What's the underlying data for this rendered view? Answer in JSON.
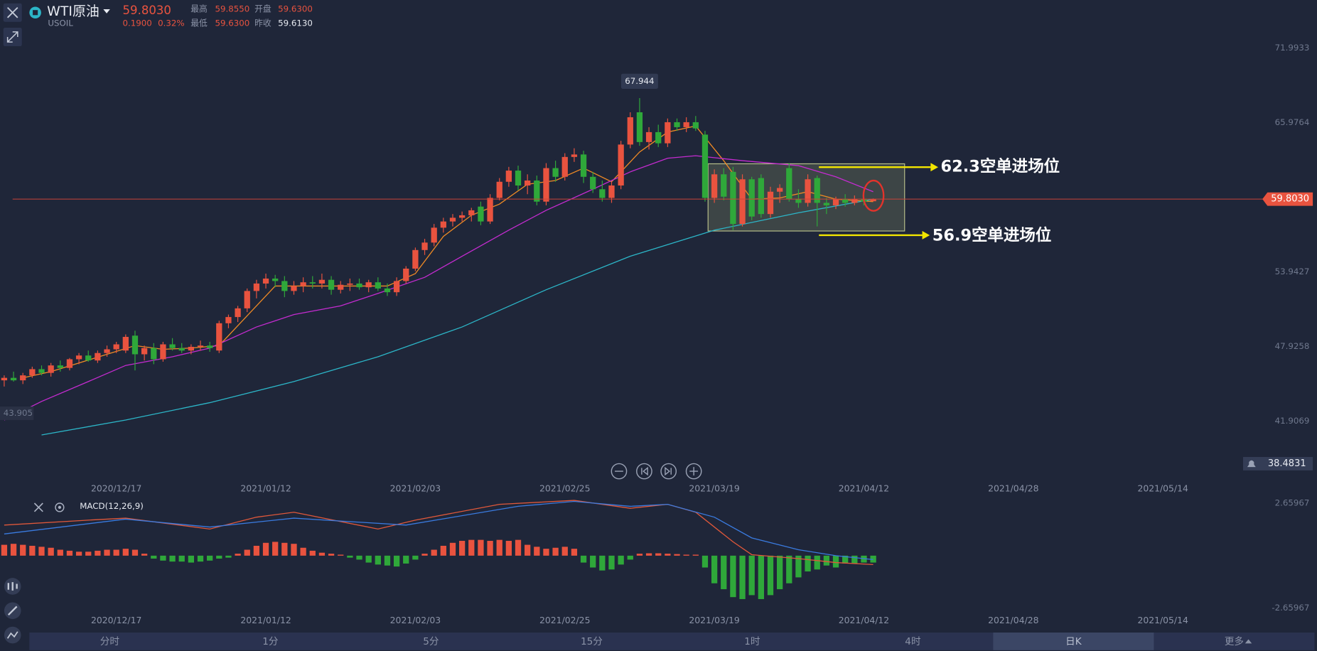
{
  "header": {
    "symbol": "WTI原油",
    "price": "59.8030",
    "code": "USOIL",
    "change": "0.1900",
    "change_pct": "0.32%",
    "stats": [
      {
        "label": "最高",
        "value": "59.8550"
      },
      {
        "label": "开盘",
        "value": "59.6300"
      },
      {
        "label": "最低",
        "value": "59.6300"
      },
      {
        "label": "昨收",
        "value": "59.6130"
      }
    ]
  },
  "annotations": [
    "62.3空单进场位",
    "56.9空单进场位"
  ],
  "toolbar": {
    "tabs": [
      "分时",
      "1分",
      "5分",
      "15分",
      "1时",
      "4时",
      "日K",
      "更多"
    ],
    "active": "日K"
  },
  "chart_data": [
    {
      "type": "candlestick",
      "up_color": "#e9533f",
      "down_color": "#2fa83a",
      "xlim": [
        -0.45,
        134.38
      ],
      "ylim": [
        38.4831,
        73.14
      ],
      "xticks": [
        {
          "value": 12,
          "label": "2020/12/17"
        },
        {
          "value": 28,
          "label": "2021/01/12"
        },
        {
          "value": 44,
          "label": "2021/02/03"
        },
        {
          "value": 60,
          "label": "2021/02/25"
        },
        {
          "value": 76,
          "label": "2021/03/19"
        },
        {
          "value": 92,
          "label": "2021/04/12"
        },
        {
          "value": 108,
          "label": "2021/04/28"
        },
        {
          "value": 124,
          "label": "2021/05/14"
        }
      ],
      "yticks": [
        71.9933,
        65.9764,
        53.9427,
        47.9258,
        41.9069
      ],
      "last_price": {
        "value": 59.803,
        "label": "59.8030"
      },
      "alert_price": 38.4831,
      "high_label": 67.944,
      "left_label": 43.905,
      "x": [
        0,
        1,
        2,
        3,
        4,
        5,
        6,
        7,
        8,
        9,
        10,
        11,
        12,
        13,
        14,
        15,
        16,
        17,
        18,
        19,
        20,
        21,
        22,
        23,
        24,
        25,
        26,
        27,
        28,
        29,
        30,
        31,
        32,
        33,
        34,
        35,
        36,
        37,
        38,
        39,
        40,
        41,
        42,
        43,
        44,
        45,
        46,
        47,
        48,
        49,
        50,
        51,
        52,
        53,
        54,
        55,
        56,
        57,
        58,
        59,
        60,
        61,
        62,
        63,
        64,
        65,
        66,
        67,
        68,
        69,
        70,
        71,
        72,
        73,
        74,
        75,
        76,
        77,
        78,
        79,
        80,
        81,
        82,
        83,
        84,
        85,
        86,
        87,
        88,
        89,
        90,
        91,
        92,
        93
      ],
      "open": [
        45.2,
        45.4,
        45.2,
        45.6,
        46.1,
        45.8,
        46.4,
        46.2,
        46.9,
        47.2,
        46.8,
        47.4,
        47.7,
        47.6,
        48.8,
        47.3,
        47.8,
        46.9,
        48.1,
        47.8,
        47.6,
        47.9,
        48.0,
        47.6,
        49.8,
        50.3,
        51.0,
        52.4,
        53.0,
        53.4,
        53.2,
        52.4,
        52.8,
        53.1,
        53.0,
        53.3,
        52.5,
        52.9,
        53.0,
        52.7,
        53.1,
        52.6,
        52.3,
        53.2,
        54.2,
        55.7,
        56.3,
        57.5,
        58.0,
        58.3,
        58.5,
        59.2,
        58.0,
        59.9,
        61.2,
        62.1,
        60.9,
        61.3,
        59.6,
        62.3,
        61.6,
        63.2,
        63.4,
        61.6,
        60.6,
        59.9,
        60.9,
        64.2,
        66.8,
        64.4,
        65.2,
        64.3,
        66.0,
        65.6,
        66.0,
        65.0,
        59.9,
        61.8,
        62.0,
        57.8,
        61.4,
        61.5,
        58.6,
        60.4,
        62.3,
        59.8,
        59.5,
        61.5,
        59.5,
        59.3,
        59.8,
        59.5,
        59.8,
        59.63
      ],
      "high": [
        45.6,
        45.9,
        45.8,
        46.3,
        46.4,
        46.6,
        46.8,
        47.0,
        47.4,
        47.6,
        47.6,
        48.0,
        48.3,
        48.9,
        49.2,
        48.0,
        48.2,
        48.3,
        48.6,
        48.2,
        48.1,
        48.4,
        48.3,
        50.0,
        50.5,
        51.2,
        52.6,
        53.3,
        53.8,
        53.7,
        53.6,
        53.2,
        53.5,
        53.6,
        53.8,
        53.6,
        53.2,
        53.4,
        53.4,
        53.3,
        53.5,
        53.0,
        53.5,
        54.4,
        55.9,
        56.6,
        57.8,
        58.3,
        58.6,
        58.8,
        59.1,
        59.6,
        60.2,
        61.5,
        62.4,
        62.5,
        61.8,
        61.7,
        62.7,
        62.9,
        63.5,
        63.9,
        63.7,
        62.0,
        61.3,
        61.2,
        64.5,
        66.8,
        67.944,
        65.6,
        65.8,
        66.3,
        66.3,
        66.4,
        66.5,
        65.3,
        62.2,
        62.3,
        62.4,
        61.8,
        61.6,
        61.8,
        60.8,
        61.0,
        62.7,
        60.6,
        61.8,
        61.7,
        59.9,
        60.0,
        60.2,
        60.1,
        60.0,
        59.855
      ],
      "low": [
        44.7,
        45.1,
        44.9,
        45.4,
        45.6,
        45.5,
        45.9,
        46.0,
        46.5,
        46.7,
        46.6,
        47.1,
        47.4,
        47.4,
        46.0,
        46.8,
        46.5,
        46.7,
        47.6,
        47.4,
        47.3,
        47.6,
        47.5,
        47.4,
        49.4,
        49.9,
        50.7,
        51.8,
        52.6,
        52.7,
        51.9,
        52.1,
        52.3,
        52.6,
        52.6,
        52.1,
        52.2,
        52.4,
        52.5,
        52.3,
        52.4,
        52.0,
        52.0,
        53.0,
        54.0,
        55.3,
        56.0,
        57.1,
        57.6,
        58.0,
        58.0,
        57.7,
        57.8,
        59.7,
        60.8,
        60.5,
        60.2,
        59.3,
        59.3,
        61.2,
        61.3,
        62.8,
        61.1,
        60.3,
        59.6,
        59.5,
        60.6,
        63.9,
        64.1,
        63.8,
        64.0,
        64.0,
        65.3,
        65.2,
        65.3,
        59.6,
        59.5,
        59.7,
        57.3,
        57.6,
        58.1,
        58.3,
        58.3,
        59.5,
        59.6,
        59.1,
        59.2,
        57.6,
        58.6,
        59.0,
        59.2,
        59.3,
        59.3,
        59.63
      ],
      "close": [
        45.4,
        45.2,
        45.6,
        46.1,
        45.8,
        46.4,
        46.2,
        46.9,
        47.2,
        46.8,
        47.4,
        47.7,
        48.1,
        48.7,
        47.3,
        47.8,
        46.9,
        48.1,
        47.8,
        47.6,
        47.9,
        48.0,
        47.8,
        49.8,
        50.3,
        51.0,
        52.4,
        53.0,
        53.4,
        53.2,
        52.4,
        52.8,
        53.1,
        53.0,
        53.3,
        52.5,
        52.9,
        53.0,
        52.7,
        53.1,
        52.6,
        52.3,
        53.2,
        54.2,
        55.7,
        56.3,
        57.5,
        58.0,
        58.3,
        58.5,
        58.9,
        58.0,
        59.9,
        61.2,
        62.1,
        60.9,
        61.3,
        59.6,
        62.3,
        61.6,
        63.2,
        63.4,
        61.6,
        60.6,
        59.9,
        60.9,
        64.2,
        66.4,
        64.4,
        65.2,
        64.3,
        66.0,
        65.6,
        66.0,
        65.5,
        59.9,
        61.8,
        60.0,
        57.8,
        61.4,
        58.4,
        58.6,
        60.4,
        60.7,
        59.8,
        59.5,
        61.4,
        59.5,
        59.3,
        59.8,
        59.5,
        59.8,
        59.6,
        59.803
      ],
      "lines": [
        {
          "color": "#f08a24",
          "x": [
            2,
            5,
            8,
            11,
            14,
            17,
            20,
            23,
            26,
            29,
            32,
            35,
            38,
            41,
            44,
            47,
            50,
            53,
            56,
            59,
            62,
            65,
            68,
            71,
            74,
            77,
            80,
            83,
            86,
            89,
            93
          ],
          "values": [
            45.4,
            45.9,
            46.6,
            47.3,
            48.0,
            47.7,
            47.8,
            48.0,
            50.4,
            52.8,
            52.8,
            52.8,
            52.8,
            52.8,
            53.8,
            56.8,
            58.5,
            59.4,
            61.0,
            61.3,
            62.3,
            61.2,
            63.6,
            65.2,
            65.7,
            62.9,
            59.8,
            59.9,
            60.4,
            59.8,
            59.6
          ]
        },
        {
          "color": "#c42bd0",
          "x": [
            0,
            4,
            9,
            13,
            18,
            22,
            27,
            31,
            36,
            40,
            45,
            49,
            54,
            58,
            63,
            67,
            71,
            74,
            79,
            85,
            89,
            93
          ],
          "values": [
            42.0,
            43.5,
            45.1,
            46.4,
            47.1,
            47.8,
            49.5,
            50.5,
            51.2,
            52.2,
            53.5,
            55.2,
            57.3,
            58.9,
            60.6,
            62.0,
            63.1,
            63.3,
            62.9,
            62.5,
            61.6,
            60.4
          ]
        },
        {
          "color": "#2cb6c8",
          "x": [
            4,
            13,
            22,
            31,
            40,
            49,
            58,
            67,
            76,
            85,
            93
          ],
          "values": [
            40.8,
            42.0,
            43.4,
            45.1,
            47.1,
            49.5,
            52.5,
            55.2,
            57.3,
            58.7,
            59.8
          ]
        }
      ]
    },
    {
      "type": "macd",
      "title": "MACD(12,26,9)",
      "up_color": "#e9533f",
      "down_color": "#2fa83a",
      "xlim": [
        -0.45,
        134.38
      ],
      "ylim": [
        -3,
        3
      ],
      "xticks": [
        {
          "value": 12,
          "label": "2020/12/17"
        },
        {
          "value": 28,
          "label": "2021/01/12"
        },
        {
          "value": 44,
          "label": "2021/02/03"
        },
        {
          "value": 60,
          "label": "2021/02/25"
        },
        {
          "value": 76,
          "label": "2021/03/19"
        },
        {
          "value": 92,
          "label": "2021/04/12"
        },
        {
          "value": 108,
          "label": "2021/04/28"
        },
        {
          "value": 124,
          "label": "2021/05/14"
        }
      ],
      "yticks": [
        2.65967,
        -2.65967
      ],
      "x": [
        0,
        1,
        2,
        3,
        4,
        5,
        6,
        7,
        8,
        9,
        10,
        11,
        12,
        13,
        14,
        15,
        16,
        17,
        18,
        19,
        20,
        21,
        22,
        23,
        24,
        25,
        26,
        27,
        28,
        29,
        30,
        31,
        32,
        33,
        34,
        35,
        36,
        37,
        38,
        39,
        40,
        41,
        42,
        43,
        44,
        45,
        46,
        47,
        48,
        49,
        50,
        51,
        52,
        53,
        54,
        55,
        56,
        57,
        58,
        59,
        60,
        61,
        62,
        63,
        64,
        65,
        66,
        67,
        68,
        69,
        70,
        71,
        72,
        73,
        74,
        75,
        76,
        77,
        78,
        79,
        80,
        81,
        82,
        83,
        84,
        85,
        86,
        87,
        88,
        89,
        90,
        91,
        92,
        93
      ],
      "values": [
        0.55,
        0.6,
        0.55,
        0.5,
        0.45,
        0.4,
        0.3,
        0.25,
        0.2,
        0.2,
        0.25,
        0.3,
        0.3,
        0.35,
        0.3,
        0.1,
        -0.15,
        -0.25,
        -0.3,
        -0.3,
        -0.35,
        -0.3,
        -0.25,
        -0.15,
        -0.1,
        0.1,
        0.3,
        0.5,
        0.65,
        0.7,
        0.65,
        0.6,
        0.4,
        0.25,
        0.15,
        0.1,
        0.05,
        -0.1,
        -0.2,
        -0.35,
        -0.45,
        -0.5,
        -0.55,
        -0.4,
        -0.2,
        0.1,
        0.3,
        0.5,
        0.65,
        0.75,
        0.8,
        0.8,
        0.75,
        0.8,
        0.75,
        0.8,
        0.55,
        0.45,
        0.35,
        0.4,
        0.45,
        0.35,
        -0.35,
        -0.6,
        -0.75,
        -0.7,
        -0.45,
        -0.2,
        0.1,
        0.12,
        0.12,
        0.1,
        0.08,
        0.05,
        0.05,
        -0.6,
        -1.4,
        -1.7,
        -2.1,
        -2.2,
        -2.0,
        -2.2,
        -2.0,
        -1.7,
        -1.4,
        -1.1,
        -0.8,
        -0.7,
        -0.5,
        -0.6,
        -0.4,
        -0.4,
        -0.35,
        -0.35
      ],
      "lines": [
        {
          "color": "#e0583a",
          "x": [
            0,
            9,
            13,
            22,
            27,
            31,
            40,
            44,
            53,
            61,
            67,
            71,
            74,
            78,
            80,
            85,
            89,
            93
          ],
          "values": [
            1.55,
            1.8,
            1.9,
            1.35,
            1.95,
            2.2,
            1.35,
            1.8,
            2.6,
            2.8,
            2.4,
            2.6,
            2.2,
            0.7,
            0.05,
            -0.15,
            -0.35,
            -0.45
          ]
        },
        {
          "color": "#3a7be0",
          "x": [
            0,
            13,
            22,
            31,
            43,
            55,
            61,
            67,
            71,
            76,
            80,
            85,
            89,
            93
          ],
          "values": [
            1.1,
            1.85,
            1.45,
            1.9,
            1.55,
            2.5,
            2.75,
            2.5,
            2.6,
            1.95,
            0.9,
            0.3,
            0,
            -0.2
          ]
        }
      ]
    }
  ]
}
